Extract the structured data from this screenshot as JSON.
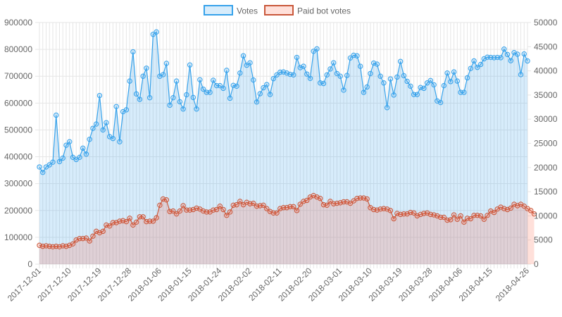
{
  "chart_data": {
    "type": "line",
    "legend_position": "top",
    "grid": true,
    "x_axis": {
      "type": "date",
      "range": [
        "2017-12-01",
        "2018-04-26"
      ],
      "tick_labels": [
        "2017-12-01",
        "2017-12-10",
        "2017-12-19",
        "2017-12-28",
        "2018-01-06",
        "2018-01-15",
        "2018-01-24",
        "2018-02-02",
        "2018-02-11",
        "2018-02-20",
        "2018-03-01",
        "2018-03-10",
        "2018-03-19",
        "2018-03-28",
        "2018-04-06",
        "2018-04-15",
        "2018-04-26"
      ]
    },
    "y_axis_left": {
      "range": [
        0,
        900000
      ],
      "tick_labels": [
        "0",
        "100000",
        "200000",
        "300000",
        "400000",
        "500000",
        "600000",
        "700000",
        "800000",
        "900000"
      ]
    },
    "y_axis_right": {
      "range": [
        0,
        50000
      ],
      "tick_labels": [
        "0",
        "5000",
        "10000",
        "15000",
        "20000",
        "25000",
        "30000",
        "35000",
        "40000",
        "45000",
        "50000"
      ]
    },
    "series": [
      {
        "name": "Votes",
        "axis": "left",
        "color": "#36a2eb",
        "fill": "rgba(54,162,235,0.2)",
        "values": [
          362000,
          342000,
          362000,
          370000,
          380000,
          555000,
          382000,
          395000,
          443000,
          456000,
          398000,
          390000,
          398000,
          432000,
          410000,
          465000,
          506000,
          522000,
          628000,
          500000,
          527000,
          475000,
          468000,
          587000,
          456000,
          568000,
          575000,
          682000,
          791000,
          634000,
          614000,
          700000,
          730000,
          620000,
          856000,
          865000,
          700000,
          706000,
          748000,
          592000,
          620000,
          682000,
          605000,
          578000,
          631000,
          742000,
          621000,
          578000,
          687000,
          652000,
          640000,
          640000,
          685000,
          665000,
          665000,
          655000,
          722000,
          618000,
          666000,
          663000,
          712000,
          776000,
          741000,
          750000,
          686000,
          604000,
          635000,
          657000,
          669000,
          632000,
          691000,
          705000,
          715000,
          716000,
          712000,
          707000,
          705000,
          770000,
          732000,
          737000,
          708000,
          692000,
          793000,
          802000,
          675000,
          673000,
          705000,
          727000,
          750000,
          710000,
          700000,
          648000,
          703000,
          768000,
          778000,
          776000,
          737000,
          640000,
          660000,
          710000,
          749000,
          745000,
          700000,
          675000,
          583000,
          690000,
          630000,
          697000,
          755000,
          702000,
          681000,
          663000,
          632000,
          632000,
          658000,
          655000,
          675000,
          684000,
          668000,
          608000,
          602000,
          665000,
          712000,
          680000,
          716000,
          682000,
          640000,
          640000,
          694000,
          729000,
          757000,
          733000,
          744000,
          765000,
          771000,
          770000,
          769000,
          770000,
          769000,
          801000,
          781000,
          758000,
          788000,
          782000,
          706000,
          783000,
          757000
        ]
      },
      {
        "name": "Paid bot votes",
        "axis": "right",
        "color": "#c9573a",
        "fill": "rgba(255,99,71,0.2)",
        "values": [
          3900,
          3700,
          3800,
          3700,
          3600,
          3700,
          3600,
          3800,
          3700,
          3900,
          4200,
          5000,
          5300,
          5300,
          5400,
          4800,
          5800,
          6800,
          6500,
          6800,
          8100,
          7900,
          8600,
          8600,
          8900,
          9000,
          8800,
          9500,
          8100,
          8700,
          9800,
          9800,
          8800,
          8900,
          8900,
          9600,
          12200,
          13500,
          13300,
          10900,
          11000,
          10400,
          11000,
          12100,
          11200,
          11200,
          11300,
          11600,
          11400,
          11000,
          10800,
          10800,
          11200,
          11300,
          12000,
          11300,
          10100,
          10800,
          12200,
          12300,
          13000,
          12300,
          12800,
          12500,
          12600,
          12000,
          12100,
          12200,
          11500,
          10900,
          10600,
          10600,
          11500,
          11700,
          11700,
          11900,
          11900,
          11100,
          12400,
          13000,
          13200,
          13900,
          14200,
          13900,
          13600,
          12300,
          12200,
          13000,
          12500,
          12600,
          12700,
          12900,
          12900,
          12600,
          13100,
          13600,
          13700,
          13700,
          13500,
          11700,
          11300,
          11200,
          11400,
          11500,
          11400,
          11100,
          9400,
          10500,
          10300,
          10400,
          10400,
          10700,
          10600,
          10000,
          10300,
          10500,
          10600,
          10300,
          10200,
          10000,
          9700,
          9700,
          9100,
          9200,
          10200,
          9300,
          10000,
          8700,
          9500,
          9400,
          10100,
          10100,
          10000,
          9300,
          10100,
          11000,
          10700,
          11400,
          11800,
          11500,
          11300,
          11600,
          12400,
          12100,
          12400,
          12000,
          11500,
          11100,
          10400
        ]
      }
    ]
  }
}
